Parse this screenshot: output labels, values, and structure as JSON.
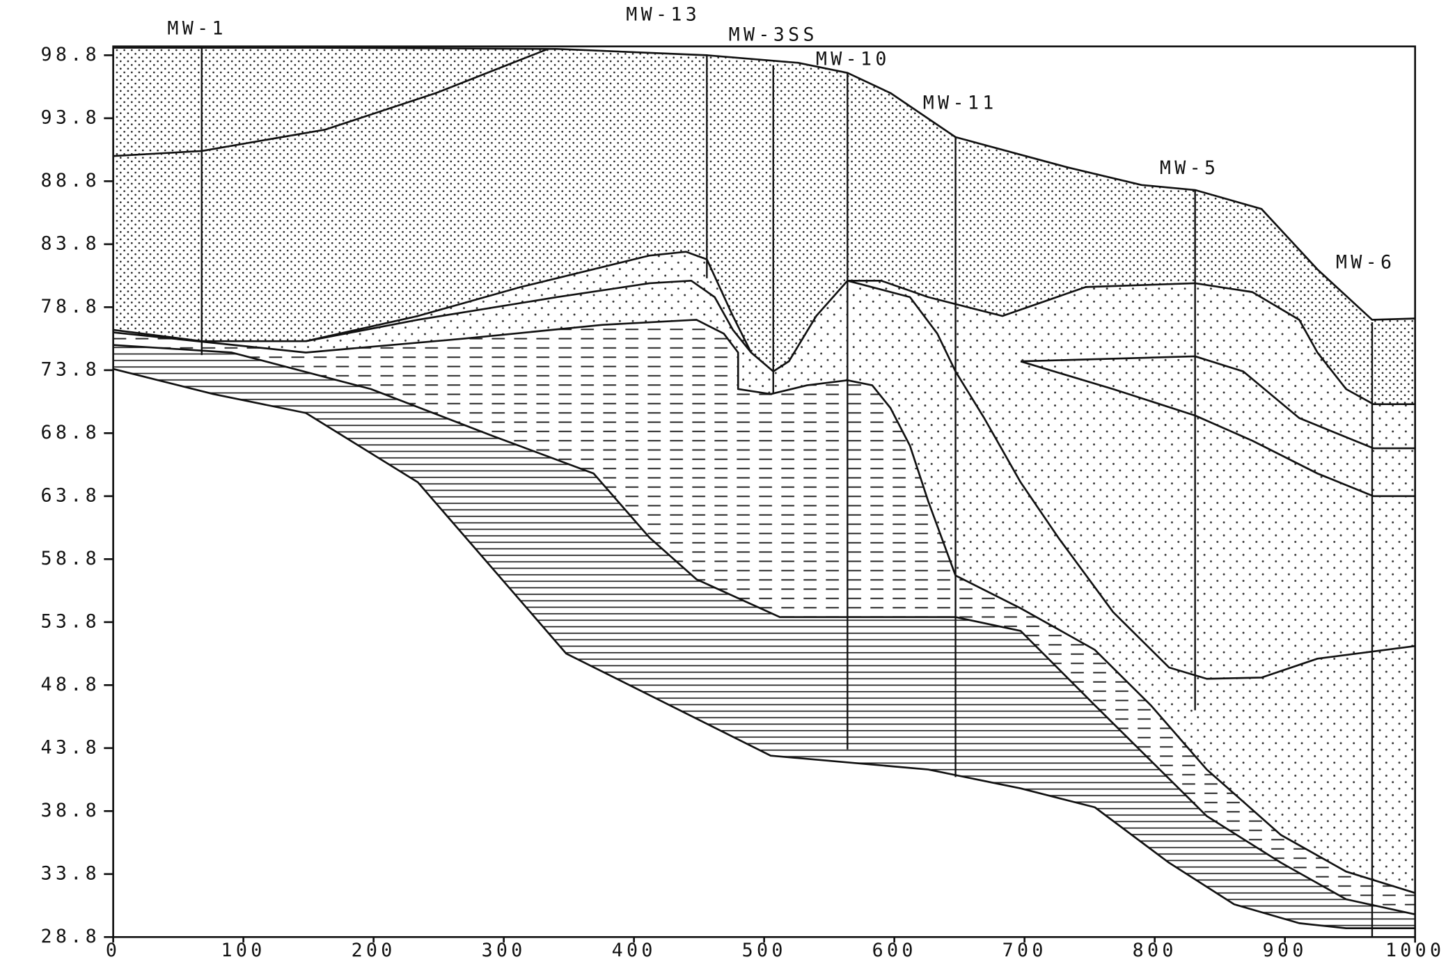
{
  "chart_data": {
    "type": "cross-section",
    "xlim": [
      0,
      1000
    ],
    "ylim": [
      28.8,
      99.5
    ],
    "xticks": [
      0,
      100,
      200,
      300,
      400,
      500,
      600,
      700,
      800,
      900,
      1000
    ],
    "yticks": [
      98.8,
      93.8,
      88.8,
      83.8,
      78.8,
      73.8,
      68.8,
      63.8,
      58.8,
      53.8,
      48.8,
      43.8,
      38.8,
      33.8,
      28.8
    ],
    "wells": [
      {
        "name": "MW-1",
        "x": 68,
        "top": 99.4,
        "bottom": 75.0
      },
      {
        "name": "MW-13",
        "x": 456,
        "top": 98.8,
        "bottom": 81.1
      },
      {
        "name": "MW-3SS",
        "x": 507,
        "top": 98.0,
        "bottom": 71.9
      },
      {
        "name": "MW-10",
        "x": 564,
        "top": 97.4,
        "bottom": 43.7
      },
      {
        "name": "MW-11",
        "x": 647,
        "top": 92.3,
        "bottom": 41.5
      },
      {
        "name": "MW-5",
        "x": 831,
        "top": 88.1,
        "bottom": 46.8
      },
      {
        "name": "MW-6",
        "x": 967,
        "top": 77.6,
        "bottom": 28.8
      }
    ],
    "boundaries": [
      {
        "x": [
          0,
          155,
          341,
          456,
          526,
          564,
          597,
          647,
          733,
          790,
          831,
          882,
          925,
          967,
          1000
        ],
        "y": [
          99.4,
          99.4,
          99.3,
          98.8,
          98.2,
          97.4,
          95.8,
          92.3,
          89.9,
          88.5,
          88.1,
          86.6,
          81.8,
          77.8,
          77.9
        ]
      },
      {
        "x": [
          0,
          68,
          163,
          248,
          334
        ],
        "y": [
          90.8,
          91.2,
          92.9,
          95.8,
          99.3
        ]
      },
      {
        "x": [
          0,
          68,
          148,
          234,
          313,
          412,
          440,
          456,
          476,
          490,
          507,
          519,
          540,
          564,
          590,
          626,
          683,
          747,
          831,
          875,
          911,
          925,
          947,
          968,
          1000
        ],
        "y": [
          77.0,
          76.1,
          76.1,
          78.1,
          80.4,
          82.9,
          83.2,
          82.6,
          78.1,
          75.2,
          73.7,
          74.5,
          78.1,
          80.9,
          80.9,
          79.6,
          78.1,
          80.4,
          80.7,
          80.0,
          77.8,
          75.2,
          72.3,
          71.1,
          71.1
        ]
      },
      {
        "x": [
          697,
          831,
          868,
          911,
          968,
          1000
        ],
        "y": [
          74.5,
          74.9,
          73.7,
          70.0,
          67.6,
          67.6
        ]
      },
      {
        "x": [
          697,
          768,
          831,
          875,
          925,
          968,
          1000
        ],
        "y": [
          74.5,
          72.3,
          70.2,
          68.2,
          65.6,
          63.8,
          63.8
        ]
      },
      {
        "x": [
          148,
          234,
          341,
          412,
          444,
          462,
          476,
          490
        ],
        "y": [
          76.1,
          77.8,
          79.6,
          80.7,
          80.9,
          79.6,
          77.0,
          75.2
        ]
      },
      {
        "x": [
          0,
          148,
          269,
          376,
          448,
          469,
          480,
          480,
          505,
          533,
          564,
          583,
          597,
          612,
          626,
          647,
          697,
          754,
          797,
          840,
          897,
          947,
          1000
        ],
        "y": [
          76.8,
          75.2,
          76.3,
          77.4,
          77.8,
          76.7,
          75.2,
          72.3,
          71.9,
          72.6,
          73.0,
          72.6,
          70.8,
          67.8,
          63.4,
          57.5,
          54.9,
          51.6,
          47.2,
          42.1,
          36.9,
          34.0,
          32.3
        ]
      },
      {
        "x": [
          564,
          612,
          633,
          647,
          669,
          697,
          726,
          768,
          811,
          840,
          882,
          925,
          1000
        ],
        "y": [
          80.9,
          79.6,
          76.7,
          73.7,
          70.0,
          64.9,
          60.5,
          54.6,
          50.2,
          49.3,
          49.4,
          50.9,
          51.9
        ]
      },
      {
        "x": [
          0,
          91,
          198,
          291,
          369,
          412,
          448,
          512,
          647,
          697,
          754,
          797,
          840,
          897,
          947,
          1000
        ],
        "y": [
          75.8,
          75.2,
          72.3,
          68.6,
          65.6,
          60.5,
          57.2,
          54.2,
          54.2,
          53.1,
          47.2,
          42.8,
          38.4,
          34.7,
          31.8,
          30.6
        ]
      },
      {
        "x": [
          0,
          77,
          148,
          234,
          348,
          412,
          505,
          626,
          697,
          754,
          811,
          861,
          911,
          947,
          1000
        ],
        "y": [
          73.9,
          71.9,
          70.4,
          64.9,
          51.3,
          48.0,
          43.2,
          42.1,
          40.6,
          39.1,
          34.7,
          31.4,
          29.9,
          29.5,
          29.5
        ]
      }
    ]
  }
}
